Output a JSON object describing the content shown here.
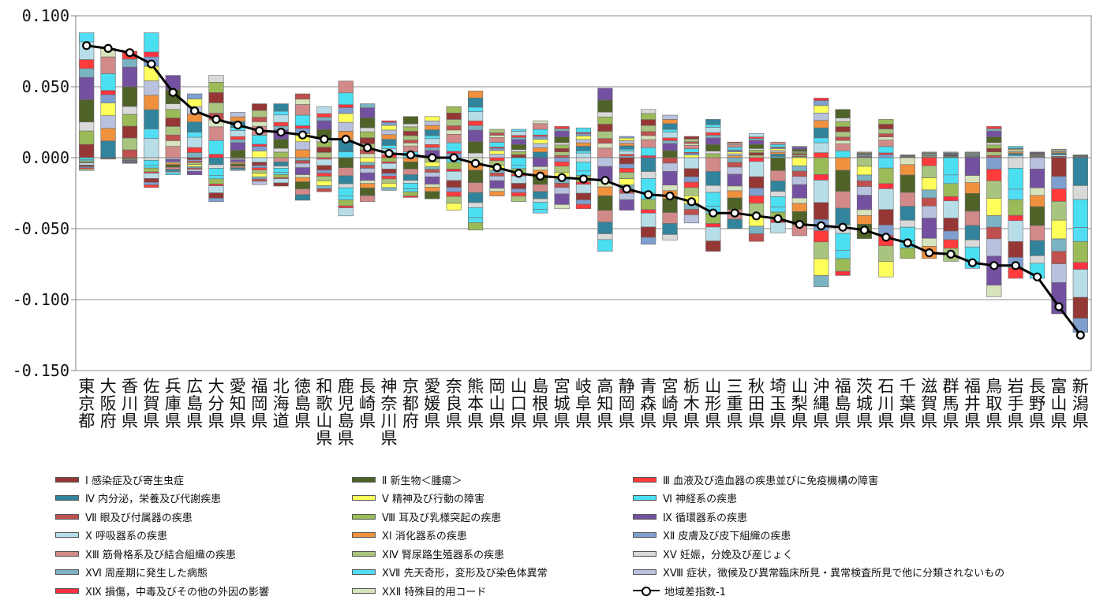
{
  "chart_data": {
    "type": "bar",
    "stacked": true,
    "ylim": [
      -0.15,
      0.1
    ],
    "yticks": [
      0.1,
      0.05,
      0,
      -0.05,
      -0.1,
      -0.15
    ],
    "ytick_labels": [
      "0.100",
      "0.050",
      "0.000",
      "-0.050",
      "-0.100",
      "-0.150"
    ],
    "grid": true,
    "legend_position": "bottom",
    "categories": [
      "東京都",
      "大阪府",
      "香川県",
      "佐賀県",
      "兵庫県",
      "広島県",
      "大分県",
      "愛知県",
      "福岡県",
      "北海道",
      "徳島県",
      "和歌山県",
      "鹿児島県",
      "長崎県",
      "神奈川県",
      "京都府",
      "愛媛県",
      "奈良県",
      "熊本県",
      "岡山県",
      "山口県",
      "島根県",
      "宮城県",
      "岐阜県",
      "高知県",
      "静岡県",
      "青森県",
      "宮崎県",
      "栃木県",
      "山形県",
      "三重県",
      "秋田県",
      "埼玉県",
      "山梨県",
      "沖縄県",
      "福島県",
      "茨城県",
      "石川県",
      "千葉県",
      "滋賀県",
      "群馬県",
      "福井県",
      "鳥取県",
      "岩手県",
      "長野県",
      "富山県",
      "新潟県"
    ],
    "bar_positive_totals": [
      0.088,
      0.077,
      0.075,
      0.088,
      0.058,
      0.045,
      0.058,
      0.032,
      0.038,
      0.038,
      0.045,
      0.036,
      0.054,
      0.038,
      0.026,
      0.029,
      0.029,
      0.036,
      0.047,
      0.02,
      0.02,
      0.026,
      0.022,
      0.021,
      0.049,
      0.015,
      0.034,
      0.03,
      0.015,
      0.027,
      0.011,
      0.017,
      0.011,
      0.008,
      0.042,
      0.034,
      0.004,
      0.027,
      0.002,
      0.004,
      0.004,
      0.004,
      0.022,
      0.008,
      0.004,
      0.006,
      0.002
    ],
    "bar_negative_totals": [
      -0.009,
      -0.001,
      -0.004,
      -0.021,
      -0.012,
      -0.012,
      -0.031,
      -0.009,
      -0.019,
      -0.02,
      -0.03,
      -0.024,
      -0.041,
      -0.031,
      -0.023,
      -0.028,
      -0.029,
      -0.037,
      -0.051,
      -0.027,
      -0.031,
      -0.039,
      -0.036,
      -0.036,
      -0.066,
      -0.037,
      -0.061,
      -0.058,
      -0.046,
      -0.066,
      -0.05,
      -0.059,
      -0.053,
      -0.055,
      -0.091,
      -0.083,
      -0.057,
      -0.084,
      -0.071,
      -0.071,
      -0.073,
      -0.078,
      -0.098,
      -0.085,
      -0.085,
      -0.11,
      -0.123
    ],
    "series": [
      {
        "name": "Ⅰ 感染症及び寄生虫症",
        "color": "#953735"
      },
      {
        "name": "Ⅱ 新生物＜腫瘍＞",
        "color": "#4F6228"
      },
      {
        "name": "Ⅲ 血液及び造血器の疾患並びに免疫機構の障害",
        "color": "#FF3B3B"
      },
      {
        "name": "Ⅳ 内分泌，栄養及び代謝疾患",
        "color": "#31849B"
      },
      {
        "name": "Ⅴ 精神及び行動の障害",
        "color": "#FFFF5C"
      },
      {
        "name": "Ⅵ 神経系の疾患",
        "color": "#4BDFF2"
      },
      {
        "name": "Ⅶ 眼及び付属器の疾患",
        "color": "#C0504D"
      },
      {
        "name": "Ⅷ 耳及び乳様突起の疾患",
        "color": "#9BBB59"
      },
      {
        "name": "Ⅸ 循環器系の疾患",
        "color": "#7451A0"
      },
      {
        "name": "Ⅹ 呼吸器系の疾患",
        "color": "#B7DEE8"
      },
      {
        "name": "ⅩⅠ 消化器系の疾患",
        "color": "#F0913E"
      },
      {
        "name": "ⅩⅡ 皮膚及び皮下組織の疾患",
        "color": "#7F9FCF"
      },
      {
        "name": "ⅩⅢ 筋骨格系及び結合組織の疾患",
        "color": "#D18A88"
      },
      {
        "name": "ⅩⅣ 腎尿路生殖器系の疾患",
        "color": "#A9C47F"
      },
      {
        "name": "ⅩⅤ 妊娠，分娩及び産じょく",
        "color": "#D9D9D9"
      },
      {
        "name": "ⅩⅥ 周産期に発生した病態",
        "color": "#7BB3C3"
      },
      {
        "name": "ⅩⅦ 先天奇形，変形及び染色体異常",
        "color": "#52DDF5"
      },
      {
        "name": "ⅩⅧ 症状，徴候及び異常臨床所見・異常検査所見で他に分類されないもの",
        "color": "#B8C2DE"
      },
      {
        "name": "ⅩⅨ 損傷，中毒及びその他の外因の影響",
        "color": "#FF3040"
      },
      {
        "name": "ⅩⅩⅡ 特殊目的用コード",
        "color": "#D6E3BC"
      }
    ],
    "line": {
      "name": "地域差指数-1",
      "values": [
        0.079,
        0.077,
        0.074,
        0.066,
        0.046,
        0.033,
        0.027,
        0.023,
        0.019,
        0.018,
        0.016,
        0.013,
        0.013,
        0.007,
        0.003,
        0.002,
        0.0,
        0.0,
        -0.004,
        -0.007,
        -0.011,
        -0.013,
        -0.014,
        -0.015,
        -0.016,
        -0.022,
        -0.026,
        -0.027,
        -0.031,
        -0.039,
        -0.039,
        -0.041,
        -0.043,
        -0.047,
        -0.048,
        -0.049,
        -0.051,
        -0.056,
        -0.06,
        -0.067,
        -0.068,
        -0.074,
        -0.076,
        -0.076,
        -0.084,
        -0.105,
        -0.125
      ]
    }
  }
}
